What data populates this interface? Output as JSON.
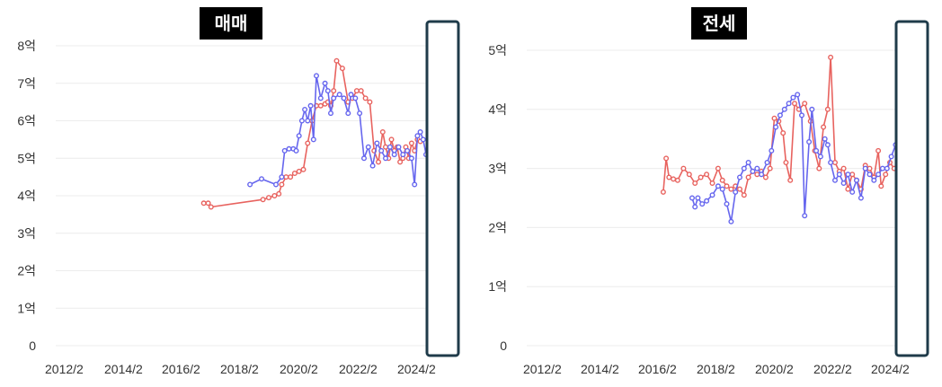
{
  "chart_data": [
    {
      "type": "line",
      "title": "매매",
      "ylim": [
        0,
        8
      ],
      "y_ticks": [
        {
          "v": 0,
          "label": "0"
        },
        {
          "v": 1,
          "label": "1억"
        },
        {
          "v": 2,
          "label": "2억"
        },
        {
          "v": 3,
          "label": "3억"
        },
        {
          "v": 4,
          "label": "4억"
        },
        {
          "v": 5,
          "label": "5억"
        },
        {
          "v": 6,
          "label": "6억"
        },
        {
          "v": 7,
          "label": "7억"
        },
        {
          "v": 8,
          "label": "8억"
        }
      ],
      "x_ticks": [
        "2012/2",
        "2014/2",
        "2016/2",
        "2018/2",
        "2020/2",
        "2022/2",
        "2024/2"
      ],
      "grid": true,
      "series": [
        {
          "color": "#e8635f",
          "points": [
            [
              2017.3,
              3.8
            ],
            [
              2017.45,
              3.8
            ],
            [
              2017.55,
              3.7
            ],
            [
              2019.35,
              3.9
            ],
            [
              2019.55,
              3.95
            ],
            [
              2019.75,
              4.0
            ],
            [
              2019.9,
              4.05
            ],
            [
              2020.0,
              4.3
            ],
            [
              2020.15,
              4.5
            ],
            [
              2020.3,
              4.5
            ],
            [
              2020.45,
              4.6
            ],
            [
              2020.6,
              4.65
            ],
            [
              2020.75,
              4.7
            ],
            [
              2020.9,
              5.4
            ],
            [
              2021.05,
              6.0
            ],
            [
              2021.2,
              6.4
            ],
            [
              2021.35,
              6.4
            ],
            [
              2021.5,
              6.45
            ],
            [
              2021.6,
              6.5
            ],
            [
              2021.7,
              6.4
            ],
            [
              2021.8,
              6.8
            ],
            [
              2021.9,
              7.6
            ],
            [
              2022.1,
              7.4
            ],
            [
              2022.3,
              6.5
            ],
            [
              2022.45,
              6.6
            ],
            [
              2022.6,
              6.8
            ],
            [
              2022.75,
              6.8
            ],
            [
              2022.9,
              6.6
            ],
            [
              2023.05,
              6.5
            ],
            [
              2023.2,
              5.2
            ],
            [
              2023.35,
              4.9
            ],
            [
              2023.5,
              5.7
            ],
            [
              2023.6,
              5.3
            ],
            [
              2023.7,
              5.0
            ],
            [
              2023.8,
              5.5
            ],
            [
              2023.9,
              5.2
            ],
            [
              2024.0,
              5.3
            ],
            [
              2024.1,
              4.9
            ],
            [
              2024.2,
              5.0
            ],
            [
              2024.3,
              5.3
            ],
            [
              2024.4,
              5.0
            ],
            [
              2024.5,
              5.4
            ],
            [
              2024.6,
              5.2
            ],
            [
              2024.7,
              5.5
            ],
            [
              2024.8,
              5.45
            ]
          ]
        },
        {
          "color": "#6666ee",
          "points": [
            [
              2018.9,
              4.3
            ],
            [
              2019.3,
              4.45
            ],
            [
              2019.8,
              4.3
            ],
            [
              2020.0,
              4.5
            ],
            [
              2020.1,
              5.2
            ],
            [
              2020.25,
              5.25
            ],
            [
              2020.4,
              5.25
            ],
            [
              2020.5,
              5.2
            ],
            [
              2020.6,
              5.6
            ],
            [
              2020.7,
              6.0
            ],
            [
              2020.8,
              6.3
            ],
            [
              2020.9,
              6.0
            ],
            [
              2021.0,
              6.4
            ],
            [
              2021.1,
              5.5
            ],
            [
              2021.2,
              7.2
            ],
            [
              2021.35,
              6.6
            ],
            [
              2021.5,
              7.0
            ],
            [
              2021.6,
              6.8
            ],
            [
              2021.7,
              6.2
            ],
            [
              2021.8,
              6.6
            ],
            [
              2022.0,
              6.7
            ],
            [
              2022.15,
              6.6
            ],
            [
              2022.3,
              6.2
            ],
            [
              2022.4,
              6.7
            ],
            [
              2022.55,
              6.6
            ],
            [
              2022.7,
              6.2
            ],
            [
              2022.85,
              5.0
            ],
            [
              2023.0,
              5.3
            ],
            [
              2023.15,
              4.8
            ],
            [
              2023.3,
              5.4
            ],
            [
              2023.45,
              5.2
            ],
            [
              2023.6,
              5.0
            ],
            [
              2023.75,
              5.3
            ],
            [
              2023.9,
              5.1
            ],
            [
              2024.05,
              5.3
            ],
            [
              2024.2,
              5.1
            ],
            [
              2024.35,
              5.2
            ],
            [
              2024.5,
              5.0
            ],
            [
              2024.6,
              4.3
            ],
            [
              2024.7,
              5.6
            ],
            [
              2024.8,
              5.7
            ],
            [
              2024.9,
              5.5
            ],
            [
              2025.0,
              5.1
            ]
          ]
        }
      ]
    },
    {
      "type": "line",
      "title": "전세",
      "ylim": [
        0,
        5
      ],
      "y_ticks": [
        {
          "v": 0,
          "label": "0"
        },
        {
          "v": 1,
          "label": "1억"
        },
        {
          "v": 2,
          "label": "2억"
        },
        {
          "v": 3,
          "label": "3억"
        },
        {
          "v": 4,
          "label": "4억"
        },
        {
          "v": 5,
          "label": "5억"
        }
      ],
      "x_ticks": [
        "2012/2",
        "2014/2",
        "2016/2",
        "2018/2",
        "2020/2",
        "2022/2",
        "2024/2"
      ],
      "grid": true,
      "series": [
        {
          "color": "#e8635f",
          "points": [
            [
              2016.9,
              2.6
            ],
            [
              2017.0,
              3.17
            ],
            [
              2017.1,
              2.85
            ],
            [
              2017.25,
              2.82
            ],
            [
              2017.4,
              2.8
            ],
            [
              2017.6,
              3.0
            ],
            [
              2017.8,
              2.9
            ],
            [
              2018.0,
              2.75
            ],
            [
              2018.2,
              2.85
            ],
            [
              2018.4,
              2.9
            ],
            [
              2018.6,
              2.75
            ],
            [
              2018.8,
              3.0
            ],
            [
              2018.95,
              2.8
            ],
            [
              2019.1,
              2.7
            ],
            [
              2019.25,
              2.65
            ],
            [
              2019.4,
              2.7
            ],
            [
              2019.55,
              2.65
            ],
            [
              2019.7,
              2.55
            ],
            [
              2019.85,
              2.85
            ],
            [
              2020.0,
              2.95
            ],
            [
              2020.15,
              2.9
            ],
            [
              2020.3,
              2.95
            ],
            [
              2020.45,
              2.85
            ],
            [
              2020.6,
              3.0
            ],
            [
              2020.75,
              3.85
            ],
            [
              2020.9,
              3.8
            ],
            [
              2021.05,
              3.6
            ],
            [
              2021.15,
              3.1
            ],
            [
              2021.3,
              2.8
            ],
            [
              2021.45,
              4.1
            ],
            [
              2021.6,
              4.0
            ],
            [
              2021.8,
              4.1
            ],
            [
              2022.0,
              3.8
            ],
            [
              2022.15,
              3.3
            ],
            [
              2022.3,
              3.0
            ],
            [
              2022.45,
              3.7
            ],
            [
              2022.6,
              4.0
            ],
            [
              2022.7,
              4.88
            ],
            [
              2022.85,
              3.1
            ],
            [
              2023.0,
              2.95
            ],
            [
              2023.15,
              3.0
            ],
            [
              2023.3,
              2.65
            ],
            [
              2023.45,
              2.9
            ],
            [
              2023.6,
              2.8
            ],
            [
              2023.75,
              2.65
            ],
            [
              2023.9,
              3.05
            ],
            [
              2024.05,
              3.0
            ],
            [
              2024.2,
              2.85
            ],
            [
              2024.35,
              3.3
            ],
            [
              2024.45,
              2.7
            ],
            [
              2024.6,
              2.9
            ],
            [
              2024.75,
              3.1
            ],
            [
              2024.9,
              3.0
            ],
            [
              2025.05,
              2.9
            ],
            [
              2025.2,
              2.95
            ]
          ]
        },
        {
          "color": "#6666ee",
          "points": [
            [
              2017.9,
              2.5
            ],
            [
              2018.0,
              2.35
            ],
            [
              2018.1,
              2.5
            ],
            [
              2018.25,
              2.4
            ],
            [
              2018.4,
              2.45
            ],
            [
              2018.6,
              2.55
            ],
            [
              2018.8,
              2.7
            ],
            [
              2018.95,
              2.65
            ],
            [
              2019.1,
              2.4
            ],
            [
              2019.25,
              2.1
            ],
            [
              2019.4,
              2.6
            ],
            [
              2019.55,
              2.85
            ],
            [
              2019.7,
              3.0
            ],
            [
              2019.85,
              3.1
            ],
            [
              2020.0,
              2.95
            ],
            [
              2020.15,
              3.0
            ],
            [
              2020.3,
              2.9
            ],
            [
              2020.5,
              3.1
            ],
            [
              2020.65,
              3.3
            ],
            [
              2020.8,
              3.7
            ],
            [
              2020.95,
              3.9
            ],
            [
              2021.1,
              4.0
            ],
            [
              2021.25,
              4.1
            ],
            [
              2021.4,
              4.2
            ],
            [
              2021.55,
              4.25
            ],
            [
              2021.7,
              3.9
            ],
            [
              2021.8,
              2.2
            ],
            [
              2021.95,
              3.45
            ],
            [
              2022.05,
              4.0
            ],
            [
              2022.2,
              3.3
            ],
            [
              2022.35,
              3.2
            ],
            [
              2022.5,
              3.5
            ],
            [
              2022.6,
              3.4
            ],
            [
              2022.7,
              3.1
            ],
            [
              2022.85,
              2.8
            ],
            [
              2023.0,
              2.9
            ],
            [
              2023.15,
              2.75
            ],
            [
              2023.3,
              2.9
            ],
            [
              2023.45,
              2.6
            ],
            [
              2023.6,
              2.8
            ],
            [
              2023.75,
              2.5
            ],
            [
              2023.9,
              3.0
            ],
            [
              2024.05,
              2.9
            ],
            [
              2024.2,
              2.8
            ],
            [
              2024.35,
              2.9
            ],
            [
              2024.5,
              3.0
            ],
            [
              2024.65,
              3.0
            ],
            [
              2024.8,
              3.2
            ],
            [
              2024.95,
              3.4
            ],
            [
              2025.1,
              3.4
            ],
            [
              2025.2,
              3.15
            ]
          ]
        }
      ]
    }
  ],
  "colors": {
    "background": "#ffffff",
    "grid": "#ececec",
    "sell": "#e8635f",
    "rent": "#6666ee",
    "title_bg": "#000000",
    "frame": "#1f3b4a"
  }
}
